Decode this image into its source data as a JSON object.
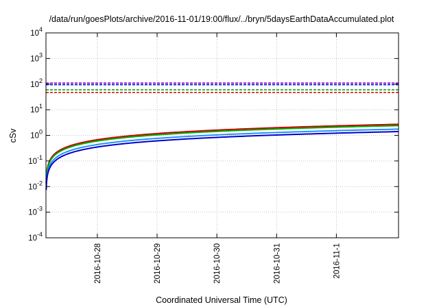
{
  "chart_data": {
    "type": "line",
    "title": "/data/run/goesPlots/archive/2016-11-01/19:00/flux/../bryn/5daysEarthDataAccumulated.plot",
    "xlabel": "Coordinated Universal Time (UTC)",
    "ylabel": "cSv",
    "x_ticks": [
      "2016-10-28",
      "2016-10-29",
      "2016-10-30",
      "2016-10-31",
      "2016-11-1"
    ],
    "x_tick_positions": [
      0.86,
      1.86,
      2.86,
      3.86,
      4.86
    ],
    "xlim": [
      0,
      5.9
    ],
    "y_scale": "log",
    "ylim": [
      0.0001,
      10000
    ],
    "y_ticks": [
      {
        "base": "10",
        "exp": "-4",
        "value": 0.0001
      },
      {
        "base": "10",
        "exp": "-3",
        "value": 0.001
      },
      {
        "base": "10",
        "exp": "-2",
        "value": 0.01
      },
      {
        "base": "10",
        "exp": "-1",
        "value": 0.1
      },
      {
        "base": "10",
        "exp": "0",
        "value": 1
      },
      {
        "base": "10",
        "exp": "1",
        "value": 10
      },
      {
        "base": "10",
        "exp": "2",
        "value": 100
      },
      {
        "base": "10",
        "exp": "3",
        "value": 1000
      },
      {
        "base": "10",
        "exp": "4",
        "value": 10000
      }
    ],
    "grid": true,
    "series": [
      {
        "color": "#cc0000",
        "style": "solid",
        "end_value": 2.7
      },
      {
        "color": "#00aa00",
        "style": "solid",
        "end_value": 2.4
      },
      {
        "color": "#1e90ff",
        "style": "solid",
        "end_value": 1.75
      },
      {
        "color": "#0000cc",
        "style": "solid",
        "end_value": 1.4
      }
    ],
    "thresholds": [
      {
        "color": "#9400d3",
        "style": "dashed",
        "value": 110
      },
      {
        "color": "#0000cc",
        "style": "dashed",
        "value": 95
      },
      {
        "color": "#00aa00",
        "style": "dashed",
        "value": 60
      },
      {
        "color": "#cc0000",
        "style": "dashed",
        "value": 47
      }
    ]
  }
}
